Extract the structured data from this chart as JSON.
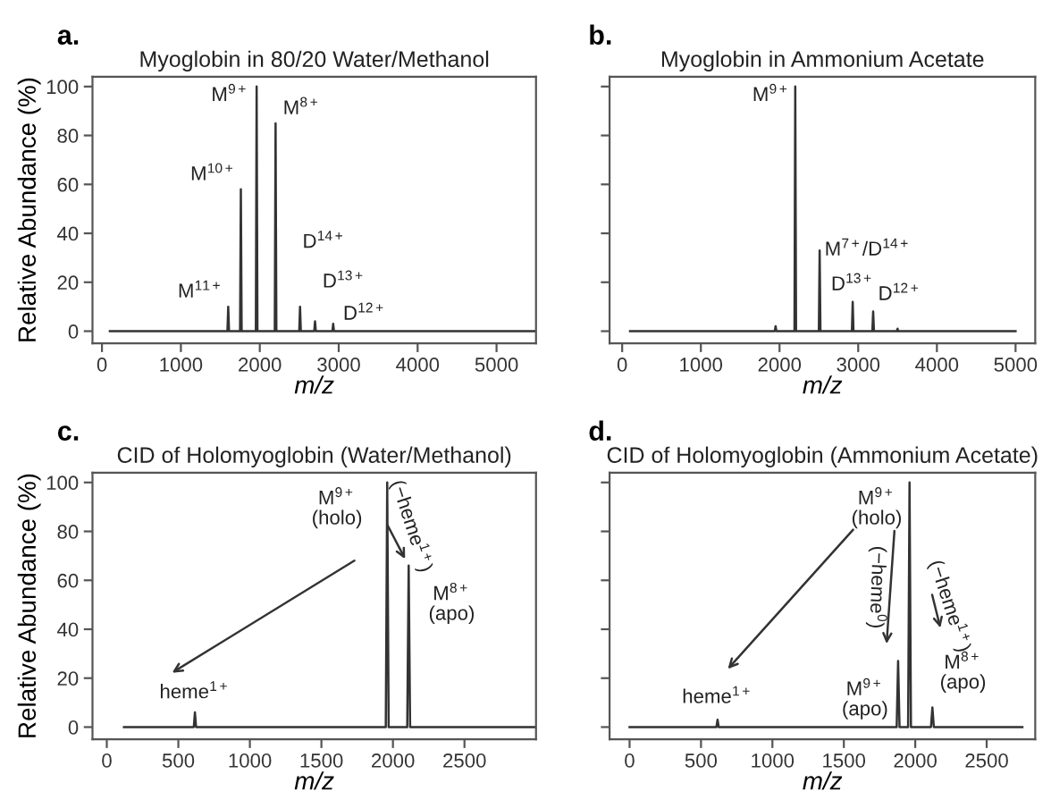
{
  "chart_data": [
    {
      "type": "line",
      "title": "Myoglobin in 80/20 Water/Methanol",
      "xlabel": "m/z",
      "ylabel": "Relative Abundance (%)",
      "xlim": [
        -120,
        5500
      ],
      "ylim": [
        -5,
        104
      ],
      "xticks": [
        0,
        1000,
        2000,
        3000,
        4000,
        5000
      ],
      "yticks": [
        0,
        20,
        40,
        60,
        80,
        100
      ],
      "grid": false,
      "marker": "none",
      "line_style": "solid",
      "series": [
        {
          "color": "#333333",
          "x": [
            100,
            1590,
            1600,
            1610,
            1750,
            1760,
            1770,
            1950,
            1960,
            1970,
            2190,
            2200,
            2210,
            2500,
            2510,
            2520,
            2690,
            2700,
            2710,
            2920,
            2930,
            2940,
            5500
          ],
          "values": [
            0,
            0,
            10,
            0,
            0,
            58,
            0,
            0,
            100,
            0,
            0,
            85,
            0,
            0,
            10,
            0,
            0,
            4,
            0,
            0,
            3,
            0,
            0
          ]
        }
      ],
      "annotations": [
        "a.",
        {
          "text": "M$^{11+}$",
          "x": 1600,
          "y": 10
        },
        {
          "text": "M$^{10+}$",
          "x": 1760,
          "y": 58
        },
        {
          "text": "M$^{9+}$",
          "x": 1960,
          "y": 100
        },
        {
          "text": "M$^{8+}$",
          "x": 2200,
          "y": 85
        },
        {
          "text": "D$^{14+}$",
          "x": 2510,
          "y": 10
        },
        {
          "text": "D$^{13+}$",
          "x": 2700,
          "y": 4
        },
        {
          "text": "D$^{12+}$",
          "x": 2930,
          "y": 3
        }
      ]
    },
    {
      "type": "line",
      "title": "Myoglobin in Ammonium Acetate",
      "xlabel": "m/z",
      "xlim": [
        -160,
        5250
      ],
      "ylim": [
        -5,
        104
      ],
      "xticks": [
        0,
        1000,
        2000,
        3000,
        4000,
        5000
      ],
      "yticks": [
        0,
        20,
        40,
        60,
        80,
        100
      ],
      "tick_labels": "x",
      "grid": false,
      "marker": "none",
      "line_style": "solid",
      "series": [
        {
          "color": "#333333",
          "x": [
            100,
            1940,
            1950,
            1960,
            2190,
            2200,
            2210,
            2500,
            2510,
            2520,
            2920,
            2930,
            2940,
            3180,
            3190,
            3200,
            3490,
            3500,
            3510,
            5000
          ],
          "values": [
            0,
            0,
            2,
            0,
            0,
            100,
            0,
            0,
            33,
            0,
            0,
            12,
            0,
            0,
            8,
            0,
            0,
            1,
            0,
            0
          ]
        }
      ],
      "annotations": [
        "b.",
        {
          "text": "M$^{9+}$",
          "x": 2200,
          "y": 100
        },
        {
          "text": "M$^{7+}$/D$^{14+}$",
          "x": 2510,
          "y": 33
        },
        {
          "text": "D$^{13+}$",
          "x": 2930,
          "y": 12
        },
        {
          "text": "D$^{12+}$",
          "x": 3190,
          "y": 8
        }
      ]
    },
    {
      "type": "line",
      "title": "CID of Holomyoglobin (Water/Methanol)",
      "xlabel": "m/z",
      "ylabel": "Relative Abundance (%)",
      "xlim": [
        -100,
        3000
      ],
      "ylim": [
        -5,
        104
      ],
      "xticks": [
        0,
        500,
        1000,
        1500,
        2000,
        2500
      ],
      "yticks": [
        0,
        20,
        40,
        60,
        80,
        100
      ],
      "grid": false,
      "marker": "none",
      "line_style": "solid",
      "series": [
        {
          "color": "#333333",
          "x": [
            120,
            608,
            616,
            624,
            1950,
            1960,
            1970,
            2100,
            2110,
            2120,
            3000
          ],
          "values": [
            0,
            0,
            6,
            0,
            0,
            100,
            0,
            0,
            66,
            0,
            0
          ]
        }
      ],
      "annotations": [
        "c.",
        {
          "text": "M$^{9+}$\n(holo)",
          "x": 1960,
          "y": 100
        },
        "(−heme$^{1+}$)",
        {
          "text": "M$^{8+}$\n(apo)",
          "x": 2110,
          "y": 66
        },
        {
          "text": "heme$^{1+}$",
          "x": 616,
          "y": 6
        }
      ]
    },
    {
      "type": "line",
      "title": "CID of Holomyoglobin (Ammonium Acetate)",
      "xlabel": "m/z",
      "xlim": [
        -140,
        2840
      ],
      "ylim": [
        -5,
        104
      ],
      "xticks": [
        0,
        500,
        1000,
        1500,
        2000,
        2500
      ],
      "yticks": [
        0,
        20,
        40,
        60,
        80,
        100
      ],
      "tick_labels": "x",
      "grid": false,
      "marker": "none",
      "line_style": "solid",
      "series": [
        {
          "color": "#333333",
          "x": [
            0,
            608,
            616,
            624,
            1870,
            1880,
            1890,
            1950,
            1960,
            1970,
            2110,
            2120,
            2130,
            2750
          ],
          "values": [
            0,
            0,
            3,
            0,
            0,
            27,
            0,
            0,
            100,
            0,
            0,
            8,
            0,
            0
          ]
        }
      ],
      "annotations": [
        "d.",
        {
          "text": "M$^{9+}$\n(holo)",
          "x": 1960,
          "y": 100
        },
        "(−heme$^{0}$)",
        "(−heme$^{1+}$)",
        {
          "text": "M$^{9+}$\n(apo)",
          "x": 1880,
          "y": 27
        },
        {
          "text": "M$^{8+}$\n(apo)",
          "x": 2120,
          "y": 8
        },
        {
          "text": "heme$^{1+}$",
          "x": 616,
          "y": 3
        }
      ]
    }
  ]
}
